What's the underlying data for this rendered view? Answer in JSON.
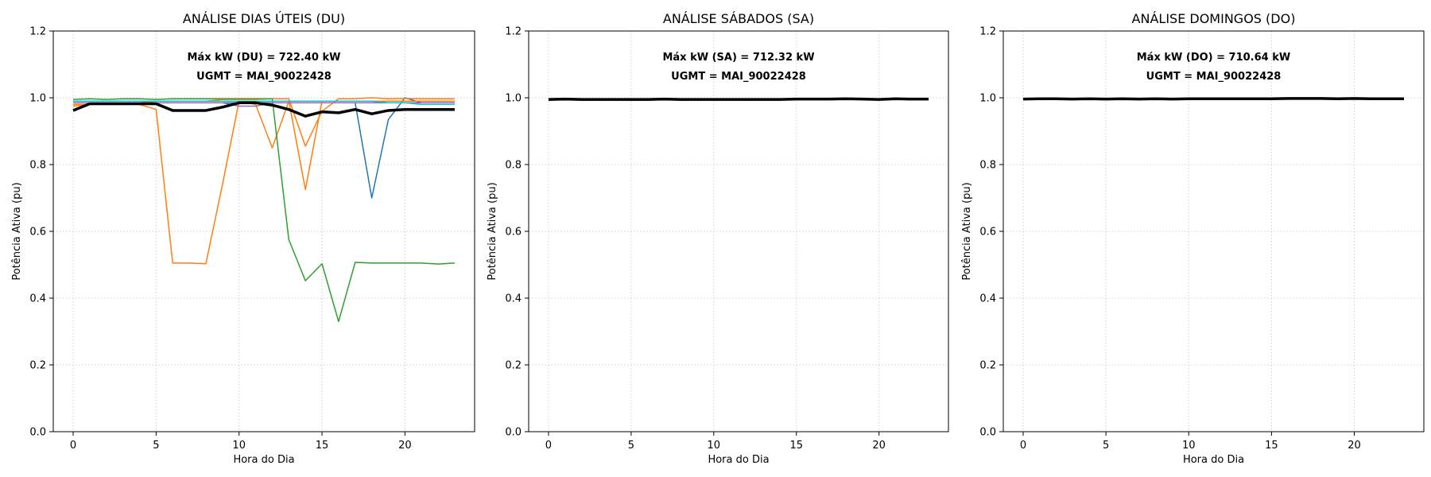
{
  "chart_data": [
    {
      "type": "line",
      "title": "ANÁLISE DIAS ÚTEIS (DU)",
      "xlabel": "Hora do Dia",
      "ylabel": "Potência Ativa (pu)",
      "xlim": [
        -1.2,
        24.2
      ],
      "ylim": [
        0,
        1.2
      ],
      "xticks": [
        0,
        5,
        10,
        15,
        20
      ],
      "yticks": [
        0.0,
        0.2,
        0.4,
        0.6,
        0.8,
        1.0,
        1.2
      ],
      "grid": true,
      "annotations": [
        "Máx kW (DU) = 722.40 kW",
        "UGMT = MAI_90022428"
      ],
      "x": [
        0,
        1,
        2,
        3,
        4,
        5,
        6,
        7,
        8,
        9,
        10,
        11,
        12,
        13,
        14,
        15,
        16,
        17,
        18,
        19,
        20,
        21,
        22,
        23
      ],
      "series": [
        {
          "color": "#1f77b4",
          "width": 1.5,
          "values": [
            0.985,
            0.985,
            0.985,
            0.985,
            0.985,
            0.985,
            0.985,
            0.985,
            0.985,
            0.985,
            0.985,
            0.985,
            0.985,
            0.985,
            0.985,
            0.985,
            0.985,
            0.985,
            0.7,
            0.935,
            1.0,
            0.985,
            0.985,
            0.985
          ]
        },
        {
          "color": "#ff7f0e",
          "width": 1.5,
          "values": [
            0.975,
            0.98,
            0.98,
            0.98,
            0.98,
            0.965,
            0.505,
            0.505,
            0.503,
            0.74,
            0.99,
            0.98,
            0.85,
            0.99,
            0.725,
            0.99,
            0.99,
            0.99,
            0.99,
            0.99,
            0.99,
            0.99,
            0.99,
            0.99
          ]
        },
        {
          "color": "#ff7f0e",
          "width": 1.5,
          "values": [
            0.98,
            0.98,
            0.98,
            0.98,
            0.985,
            0.99,
            0.99,
            0.99,
            0.99,
            0.995,
            0.995,
            0.995,
            0.997,
            0.997,
            0.855,
            0.96,
            0.997,
            0.997,
            1.0,
            0.997,
            0.998,
            0.997,
            0.997,
            0.997
          ]
        },
        {
          "color": "#2ca02c",
          "width": 1.5,
          "values": [
            0.995,
            0.997,
            0.995,
            0.997,
            0.997,
            0.995,
            0.997,
            0.997,
            0.997,
            0.997,
            0.997,
            0.997,
            0.997,
            0.575,
            0.452,
            0.503,
            0.33,
            0.507,
            0.505,
            0.505,
            0.505,
            0.505,
            0.502,
            0.505
          ]
        },
        {
          "color": "#9467bd",
          "width": 1.5,
          "values": [
            0.985,
            0.985,
            0.985,
            0.985,
            0.985,
            0.985,
            0.985,
            0.985,
            0.985,
            0.985,
            0.975,
            0.975,
            0.985,
            0.985,
            0.985,
            0.985,
            0.985,
            0.985,
            0.985,
            0.985,
            0.985,
            0.985,
            0.985,
            0.985
          ]
        },
        {
          "color": "#17becf",
          "width": 1.5,
          "values": [
            0.99,
            0.99,
            0.99,
            0.99,
            0.99,
            0.99,
            0.99,
            0.99,
            0.99,
            0.99,
            0.99,
            0.99,
            0.99,
            0.99,
            0.99,
            0.99,
            0.99,
            0.99,
            0.99,
            0.985,
            0.985,
            0.98,
            0.98,
            0.98
          ]
        },
        {
          "color": "#000000",
          "width": 3.5,
          "values": [
            0.962,
            0.982,
            0.982,
            0.982,
            0.982,
            0.982,
            0.962,
            0.962,
            0.962,
            0.972,
            0.985,
            0.985,
            0.978,
            0.965,
            0.945,
            0.958,
            0.955,
            0.965,
            0.952,
            0.962,
            0.965,
            0.965,
            0.965,
            0.965
          ]
        }
      ]
    },
    {
      "type": "line",
      "title": "ANÁLISE SÁBADOS (SA)",
      "xlabel": "Hora do Dia",
      "ylabel": "Potência Ativa (pu)",
      "xlim": [
        -1.2,
        24.2
      ],
      "ylim": [
        0,
        1.2
      ],
      "xticks": [
        0,
        5,
        10,
        15,
        20
      ],
      "yticks": [
        0.0,
        0.2,
        0.4,
        0.6,
        0.8,
        1.0,
        1.2
      ],
      "grid": true,
      "annotations": [
        "Máx kW (SA) = 712.32 kW",
        "UGMT = MAI_90022428"
      ],
      "x": [
        0,
        1,
        2,
        3,
        4,
        5,
        6,
        7,
        8,
        9,
        10,
        11,
        12,
        13,
        14,
        15,
        16,
        17,
        18,
        19,
        20,
        21,
        22,
        23
      ],
      "series": [
        {
          "color": "#1f77b4",
          "width": 1.5,
          "values": [
            0.993,
            0.994,
            0.993,
            0.993,
            0.994,
            0.993,
            0.993,
            0.994,
            0.993,
            0.994,
            0.994,
            0.994,
            0.993,
            0.994,
            0.994,
            0.995,
            0.995,
            0.996,
            0.996,
            0.996,
            0.995,
            0.996,
            0.995,
            0.995
          ]
        },
        {
          "color": "#ff7f0e",
          "width": 1.5,
          "values": [
            0.997,
            0.998,
            0.997,
            0.997,
            0.997,
            0.997,
            0.997,
            0.997,
            0.996,
            0.997,
            0.997,
            0.997,
            0.996,
            0.997,
            0.997,
            0.997,
            0.998,
            0.998,
            0.998,
            0.997,
            0.997,
            0.998,
            0.997,
            0.997
          ]
        },
        {
          "color": "#2ca02c",
          "width": 1.5,
          "values": [
            0.996,
            0.996,
            0.996,
            0.996,
            0.996,
            0.995,
            0.996,
            0.997,
            0.996,
            0.996,
            0.996,
            0.996,
            0.996,
            0.996,
            0.996,
            0.996,
            0.997,
            0.997,
            0.997,
            0.997,
            0.996,
            0.999,
            0.996,
            0.997
          ]
        },
        {
          "color": "#000000",
          "width": 3.5,
          "values": [
            0.995,
            0.996,
            0.995,
            0.995,
            0.995,
            0.995,
            0.995,
            0.996,
            0.995,
            0.995,
            0.995,
            0.995,
            0.995,
            0.995,
            0.995,
            0.996,
            0.996,
            0.996,
            0.997,
            0.996,
            0.995,
            0.997,
            0.996,
            0.996
          ]
        }
      ]
    },
    {
      "type": "line",
      "title": "ANÁLISE DOMINGOS (DO)",
      "xlabel": "Hora do Dia",
      "ylabel": "Potência Ativa (pu)",
      "xlim": [
        -1.2,
        24.2
      ],
      "ylim": [
        0,
        1.2
      ],
      "xticks": [
        0,
        5,
        10,
        15,
        20
      ],
      "yticks": [
        0.0,
        0.2,
        0.4,
        0.6,
        0.8,
        1.0,
        1.2
      ],
      "grid": true,
      "annotations": [
        "Máx kW (DO) = 710.64 kW",
        "UGMT = MAI_90022428"
      ],
      "x": [
        0,
        1,
        2,
        3,
        4,
        5,
        6,
        7,
        8,
        9,
        10,
        11,
        12,
        13,
        14,
        15,
        16,
        17,
        18,
        19,
        20,
        21,
        22,
        23
      ],
      "series": [
        {
          "color": "#1f77b4",
          "width": 1.5,
          "values": [
            0.995,
            0.996,
            0.996,
            0.995,
            0.996,
            0.995,
            0.996,
            0.995,
            0.996,
            0.995,
            0.996,
            0.996,
            0.996,
            0.996,
            0.996,
            0.996,
            0.997,
            0.997,
            0.997,
            0.997,
            0.998,
            0.997,
            0.997,
            0.997
          ]
        },
        {
          "color": "#ff7f0e",
          "width": 1.5,
          "values": [
            0.997,
            0.998,
            0.998,
            0.997,
            0.998,
            0.997,
            0.998,
            0.997,
            0.998,
            0.997,
            0.998,
            0.998,
            0.998,
            0.998,
            0.998,
            0.998,
            0.998,
            0.998,
            0.998,
            0.998,
            0.999,
            0.998,
            0.998,
            0.998
          ]
        },
        {
          "color": "#2ca02c",
          "width": 1.5,
          "values": [
            0.997,
            0.998,
            0.998,
            0.997,
            0.998,
            0.997,
            0.998,
            0.997,
            0.998,
            0.997,
            0.998,
            0.998,
            0.998,
            0.998,
            0.998,
            0.998,
            0.998,
            0.998,
            0.998,
            0.998,
            0.999,
            0.998,
            0.998,
            0.998
          ]
        },
        {
          "color": "#000000",
          "width": 3.5,
          "values": [
            0.996,
            0.997,
            0.997,
            0.996,
            0.997,
            0.996,
            0.997,
            0.996,
            0.997,
            0.996,
            0.997,
            0.997,
            0.997,
            0.997,
            0.997,
            0.997,
            0.998,
            0.998,
            0.998,
            0.997,
            0.998,
            0.997,
            0.997,
            0.997
          ]
        }
      ]
    }
  ]
}
